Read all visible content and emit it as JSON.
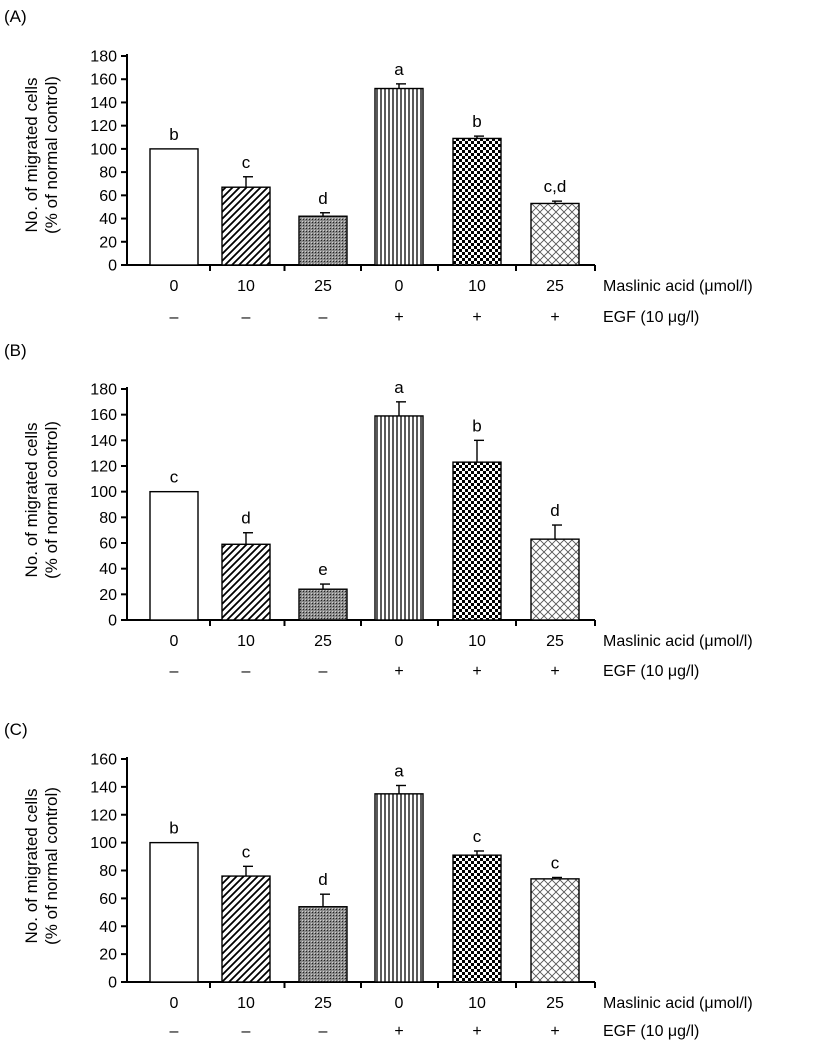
{
  "chart_data": [
    {
      "type": "bar",
      "panel": "(A)",
      "ylabel": [
        "No. of migrated cells",
        "(% of normal control)"
      ],
      "ylim": [
        0,
        180
      ],
      "yticks": [
        "0",
        "20",
        "40",
        "60",
        "80",
        "100",
        "120",
        "140",
        "160",
        "180"
      ],
      "categories": [
        "0",
        "10",
        "25",
        "0",
        "10",
        "25"
      ],
      "egf": [
        "–",
        "–",
        "–",
        "+",
        "+",
        "+"
      ],
      "row_labels": [
        "Maslinic acid (μmol/l)",
        "EGF (10 μg/l)"
      ],
      "values": [
        100,
        67,
        42,
        152,
        109,
        53
      ],
      "errors": [
        0,
        9,
        3,
        4,
        2,
        2
      ],
      "significance": [
        "b",
        "c",
        "d",
        "a",
        "b",
        "c,d"
      ]
    },
    {
      "type": "bar",
      "panel": "(B)",
      "ylabel": [
        "No. of migrated cells",
        "(% of normal control)"
      ],
      "ylim": [
        0,
        180
      ],
      "yticks": [
        "0",
        "20",
        "40",
        "60",
        "80",
        "100",
        "120",
        "140",
        "160",
        "180"
      ],
      "categories": [
        "0",
        "10",
        "25",
        "0",
        "10",
        "25"
      ],
      "egf": [
        "–",
        "–",
        "–",
        "+",
        "+",
        "+"
      ],
      "row_labels": [
        "Maslinic acid (μmol/l)",
        "EGF (10 μg/l)"
      ],
      "values": [
        100,
        59,
        24,
        159,
        123,
        63
      ],
      "errors": [
        0,
        9,
        4,
        11,
        17,
        11
      ],
      "significance": [
        "c",
        "d",
        "e",
        "a",
        "b",
        "d"
      ]
    },
    {
      "type": "bar",
      "panel": "(C)",
      "ylabel": [
        "No. of migrated cells",
        "(% of normal control)"
      ],
      "ylim": [
        0,
        160
      ],
      "yticks": [
        "0",
        "20",
        "40",
        "60",
        "80",
        "100",
        "120",
        "140",
        "160"
      ],
      "categories": [
        "0",
        "10",
        "25",
        "0",
        "10",
        "25"
      ],
      "egf": [
        "–",
        "–",
        "–",
        "+",
        "+",
        "+"
      ],
      "row_labels": [
        "Maslinic acid (μmol/l)",
        "EGF (10 μg/l)"
      ],
      "values": [
        100,
        76,
        54,
        135,
        91,
        74
      ],
      "errors": [
        0,
        7,
        9,
        6,
        3,
        1
      ],
      "significance": [
        "b",
        "c",
        "d",
        "a",
        "c",
        "c"
      ]
    }
  ]
}
